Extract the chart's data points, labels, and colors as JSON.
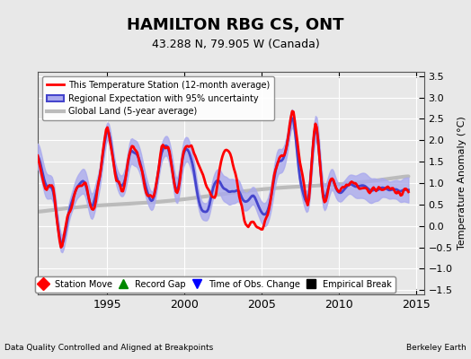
{
  "title": "HAMILTON RBG CS, ONT",
  "subtitle": "43.288 N, 79.905 W (Canada)",
  "footer_left": "Data Quality Controlled and Aligned at Breakpoints",
  "footer_right": "Berkeley Earth",
  "ylabel": "Temperature Anomaly (°C)",
  "xlim": [
    1990.5,
    2015.5
  ],
  "ylim": [
    -1.6,
    3.6
  ],
  "yticks": [
    -1.5,
    -1.0,
    -0.5,
    0.0,
    0.5,
    1.0,
    1.5,
    2.0,
    2.5,
    3.0,
    3.5
  ],
  "xticks": [
    1995,
    2000,
    2005,
    2010,
    2015
  ],
  "background_color": "#e8e8e8",
  "plot_background": "#e8e8e8",
  "grid_color": "#ffffff",
  "legend1_entries": [
    {
      "label": "This Temperature Station (12-month average)",
      "color": "#ff0000",
      "lw": 2.0
    },
    {
      "label": "Regional Expectation with 95% uncertainty",
      "color": "#4444cc",
      "lw": 2.0,
      "fill": "#aaaaee"
    },
    {
      "label": "Global Land (5-year average)",
      "color": "#bbbbbb",
      "lw": 3.0
    }
  ],
  "legend2_entries": [
    {
      "label": "Station Move",
      "marker": "D",
      "color": "#ff0000"
    },
    {
      "label": "Record Gap",
      "marker": "^",
      "color": "#008800"
    },
    {
      "label": "Time of Obs. Change",
      "marker": "v",
      "color": "#0000ff"
    },
    {
      "label": "Empirical Break",
      "marker": "s",
      "color": "#000000"
    }
  ]
}
